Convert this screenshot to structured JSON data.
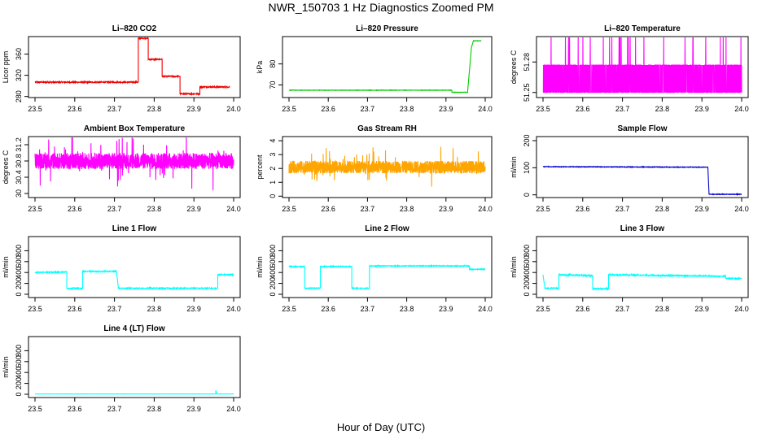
{
  "title": "NWR_150703  1 Hz Diagnostics Zoomed PM",
  "xlabel": "Hour of Day (UTC)",
  "chart_data": [
    {
      "type": "line",
      "title": "Li–820 CO2",
      "ylabel": "Licor ppm",
      "color": "#ee0000",
      "xlim": [
        23.5,
        24.0
      ],
      "ylim": [
        278,
        393
      ],
      "yticks": [
        280,
        320,
        360
      ],
      "xticks": [
        23.5,
        23.6,
        23.7,
        23.8,
        23.9,
        24.0
      ],
      "steps": [
        [
          23.5,
          307
        ],
        [
          23.76,
          307
        ],
        [
          23.76,
          390
        ],
        [
          23.785,
          390
        ],
        [
          23.785,
          350
        ],
        [
          23.82,
          350
        ],
        [
          23.82,
          318
        ],
        [
          23.865,
          318
        ],
        [
          23.865,
          285
        ],
        [
          23.915,
          285
        ],
        [
          23.915,
          298
        ],
        [
          23.99,
          298
        ]
      ],
      "noise": 1.2
    },
    {
      "type": "line",
      "title": "Li–820 Pressure",
      "ylabel": "kPa",
      "color": "#00cc00",
      "xlim": [
        23.5,
        24.0
      ],
      "ylim": [
        64,
        93
      ],
      "yticks": [
        70,
        80
      ],
      "xticks": [
        23.5,
        23.6,
        23.7,
        23.8,
        23.9,
        24.0
      ],
      "steps": [
        [
          23.5,
          67.5
        ],
        [
          23.915,
          67.5
        ],
        [
          23.915,
          66.5
        ],
        [
          23.955,
          66.5
        ],
        [
          23.965,
          88
        ],
        [
          23.97,
          91
        ],
        [
          23.99,
          91
        ]
      ],
      "noise": 0.1
    },
    {
      "type": "line",
      "title": "Li–820 Temperature",
      "ylabel": "degrees C",
      "color": "#ff00ff",
      "xlim": [
        23.5,
        24.0
      ],
      "ylim": [
        51.245,
        51.305
      ],
      "yticks": [
        51.25,
        51.28
      ],
      "xticks": [
        23.5,
        23.6,
        23.7,
        23.8,
        23.9,
        24.0
      ],
      "levels": [
        51.25,
        51.277
      ],
      "density": 0.55,
      "spikes": 51.305
    },
    {
      "type": "line",
      "title": "Ambient Box Temperature",
      "ylabel": "degrees C",
      "color": "#ff00ff",
      "xlim": [
        23.5,
        24.0
      ],
      "ylim": [
        29.9,
        31.4
      ],
      "yticks": [
        30.0,
        30.4,
        30.8,
        31.2
      ],
      "xticks": [
        23.5,
        23.6,
        23.7,
        23.8,
        23.9,
        24.0
      ],
      "mean": 30.8,
      "spread": 0.2
    },
    {
      "type": "line",
      "title": "Gas Stream RH",
      "ylabel": "percent",
      "color": "#ffa500",
      "xlim": [
        23.5,
        24.0
      ],
      "ylim": [
        -0.1,
        4.3
      ],
      "yticks": [
        0,
        1,
        2,
        3,
        4
      ],
      "xticks": [
        23.5,
        23.6,
        23.7,
        23.8,
        23.9,
        24.0
      ],
      "mean": 2.1,
      "spread": 0.45
    },
    {
      "type": "line",
      "title": "Sample Flow",
      "ylabel": "ml/min",
      "color": "#0000cc",
      "xlim": [
        23.5,
        24.0
      ],
      "ylim": [
        -10,
        215
      ],
      "yticks": [
        0,
        100,
        200
      ],
      "xticks": [
        23.5,
        23.6,
        23.7,
        23.8,
        23.9,
        24.0
      ],
      "steps": [
        [
          23.5,
          104
        ],
        [
          23.915,
          102
        ],
        [
          23.918,
          2
        ],
        [
          24.0,
          2
        ]
      ],
      "noise": 1.2
    },
    {
      "type": "line",
      "title": "Line 1 Flow",
      "ylabel": "ml/min",
      "color": "#00ffff",
      "xlim": [
        23.5,
        24.0
      ],
      "ylim": [
        -60,
        1060
      ],
      "yticks": [
        0,
        200,
        400,
        600,
        800
      ],
      "xticks": [
        23.5,
        23.6,
        23.7,
        23.8,
        23.9,
        24.0
      ],
      "steps": [
        [
          23.5,
          400
        ],
        [
          23.58,
          410
        ],
        [
          23.58,
          110
        ],
        [
          23.62,
          110
        ],
        [
          23.62,
          420
        ],
        [
          23.705,
          420
        ],
        [
          23.71,
          110
        ],
        [
          23.96,
          110
        ],
        [
          23.96,
          360
        ],
        [
          24.0,
          360
        ]
      ],
      "noise": 10
    },
    {
      "type": "line",
      "title": "Line 2 Flow",
      "ylabel": "ml/min",
      "color": "#00ffff",
      "xlim": [
        23.5,
        24.0
      ],
      "ylim": [
        -60,
        1060
      ],
      "yticks": [
        0,
        200,
        400,
        600,
        800
      ],
      "xticks": [
        23.5,
        23.6,
        23.7,
        23.8,
        23.9,
        24.0
      ],
      "steps": [
        [
          23.5,
          510
        ],
        [
          23.54,
          510
        ],
        [
          23.54,
          110
        ],
        [
          23.58,
          110
        ],
        [
          23.58,
          510
        ],
        [
          23.66,
          510
        ],
        [
          23.66,
          110
        ],
        [
          23.705,
          110
        ],
        [
          23.705,
          520
        ],
        [
          23.96,
          520
        ],
        [
          23.96,
          460
        ],
        [
          24.0,
          460
        ]
      ],
      "noise": 8
    },
    {
      "type": "line",
      "title": "Line 3 Flow",
      "ylabel": "ml/min",
      "color": "#00ffff",
      "xlim": [
        23.5,
        24.0
      ],
      "ylim": [
        -60,
        1060
      ],
      "yticks": [
        0,
        200,
        400,
        600,
        800
      ],
      "xticks": [
        23.5,
        23.6,
        23.7,
        23.8,
        23.9,
        24.0
      ],
      "steps": [
        [
          23.5,
          360
        ],
        [
          23.505,
          110
        ],
        [
          23.54,
          110
        ],
        [
          23.54,
          360
        ],
        [
          23.625,
          340
        ],
        [
          23.625,
          100
        ],
        [
          23.665,
          100
        ],
        [
          23.665,
          360
        ],
        [
          23.96,
          330
        ],
        [
          23.96,
          290
        ],
        [
          24.0,
          290
        ]
      ],
      "noise": 12
    },
    {
      "type": "line",
      "title": "Line 4 (LT) Flow",
      "ylabel": "ml/min",
      "color": "#00ffff",
      "xlim": [
        23.5,
        24.0
      ],
      "ylim": [
        -60,
        1060
      ],
      "yticks": [
        0,
        200,
        400,
        600,
        800
      ],
      "xticks": [
        23.5,
        23.6,
        23.7,
        23.8,
        23.9,
        24.0
      ],
      "steps": [
        [
          23.5,
          5
        ],
        [
          23.955,
          5
        ],
        [
          23.955,
          70
        ],
        [
          23.958,
          5
        ],
        [
          24.0,
          5
        ]
      ],
      "noise": 1
    }
  ]
}
